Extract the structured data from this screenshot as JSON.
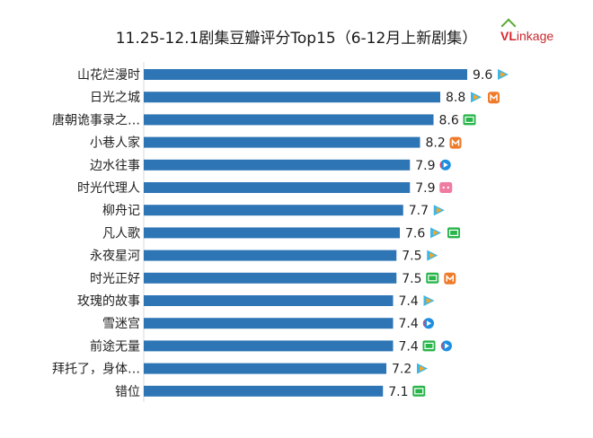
{
  "chart_data": {
    "type": "bar",
    "orientation": "horizontal",
    "title": "11.25-12.1剧集豆瓣评分Top15（6-12月上新剧集）",
    "categories": [
      "山花烂漫时",
      "日光之城",
      "唐朝诡事录之…",
      "小巷人家",
      "边水往事",
      "时光代理人",
      "柳舟记",
      "凡人歌",
      "永夜星河",
      "时光正好",
      "玫瑰的故事",
      "雪迷宫",
      "前途无量",
      "拜托了，身体…",
      "错位"
    ],
    "values": [
      9.6,
      8.8,
      8.6,
      8.2,
      7.9,
      7.9,
      7.7,
      7.6,
      7.5,
      7.5,
      7.4,
      7.4,
      7.4,
      7.2,
      7.1
    ],
    "value_labels": [
      "9.6",
      "8.8",
      "8.6",
      "8.2",
      "7.9",
      "7.9",
      "7.7",
      "7.6",
      "7.5",
      "7.5",
      "7.4",
      "7.4",
      "7.4",
      "7.2",
      "7.1"
    ],
    "platforms": [
      [
        "tencent-video-icon"
      ],
      [
        "tencent-video-icon",
        "mango-tv-icon"
      ],
      [
        "iqiyi-icon"
      ],
      [
        "mango-tv-icon"
      ],
      [
        "youku-icon"
      ],
      [
        "bilibili-icon"
      ],
      [
        "tencent-video-icon"
      ],
      [
        "tencent-video-icon",
        "iqiyi-icon"
      ],
      [
        "tencent-video-icon"
      ],
      [
        "iqiyi-icon",
        "mango-tv-icon"
      ],
      [
        "tencent-video-icon"
      ],
      [
        "youku-icon"
      ],
      [
        "iqiyi-icon",
        "youku-icon"
      ],
      [
        "tencent-video-icon"
      ],
      [
        "iqiyi-icon"
      ]
    ],
    "bar_color": "#2e75b6",
    "xlim": [
      0,
      10
    ],
    "grid": false,
    "legend": "none"
  },
  "logo": {
    "brand": "VLinkage",
    "lead": "VL",
    "rest": "inkage"
  },
  "colors": {
    "tencent": "#3db6e8",
    "tencent_play": "#f6a623",
    "mango": "#ee7a2a",
    "iqiyi": "#28b54a",
    "youku": "#1e8fe0",
    "youku_accent": "#e63b66",
    "bilibili": "#f07aa0"
  }
}
